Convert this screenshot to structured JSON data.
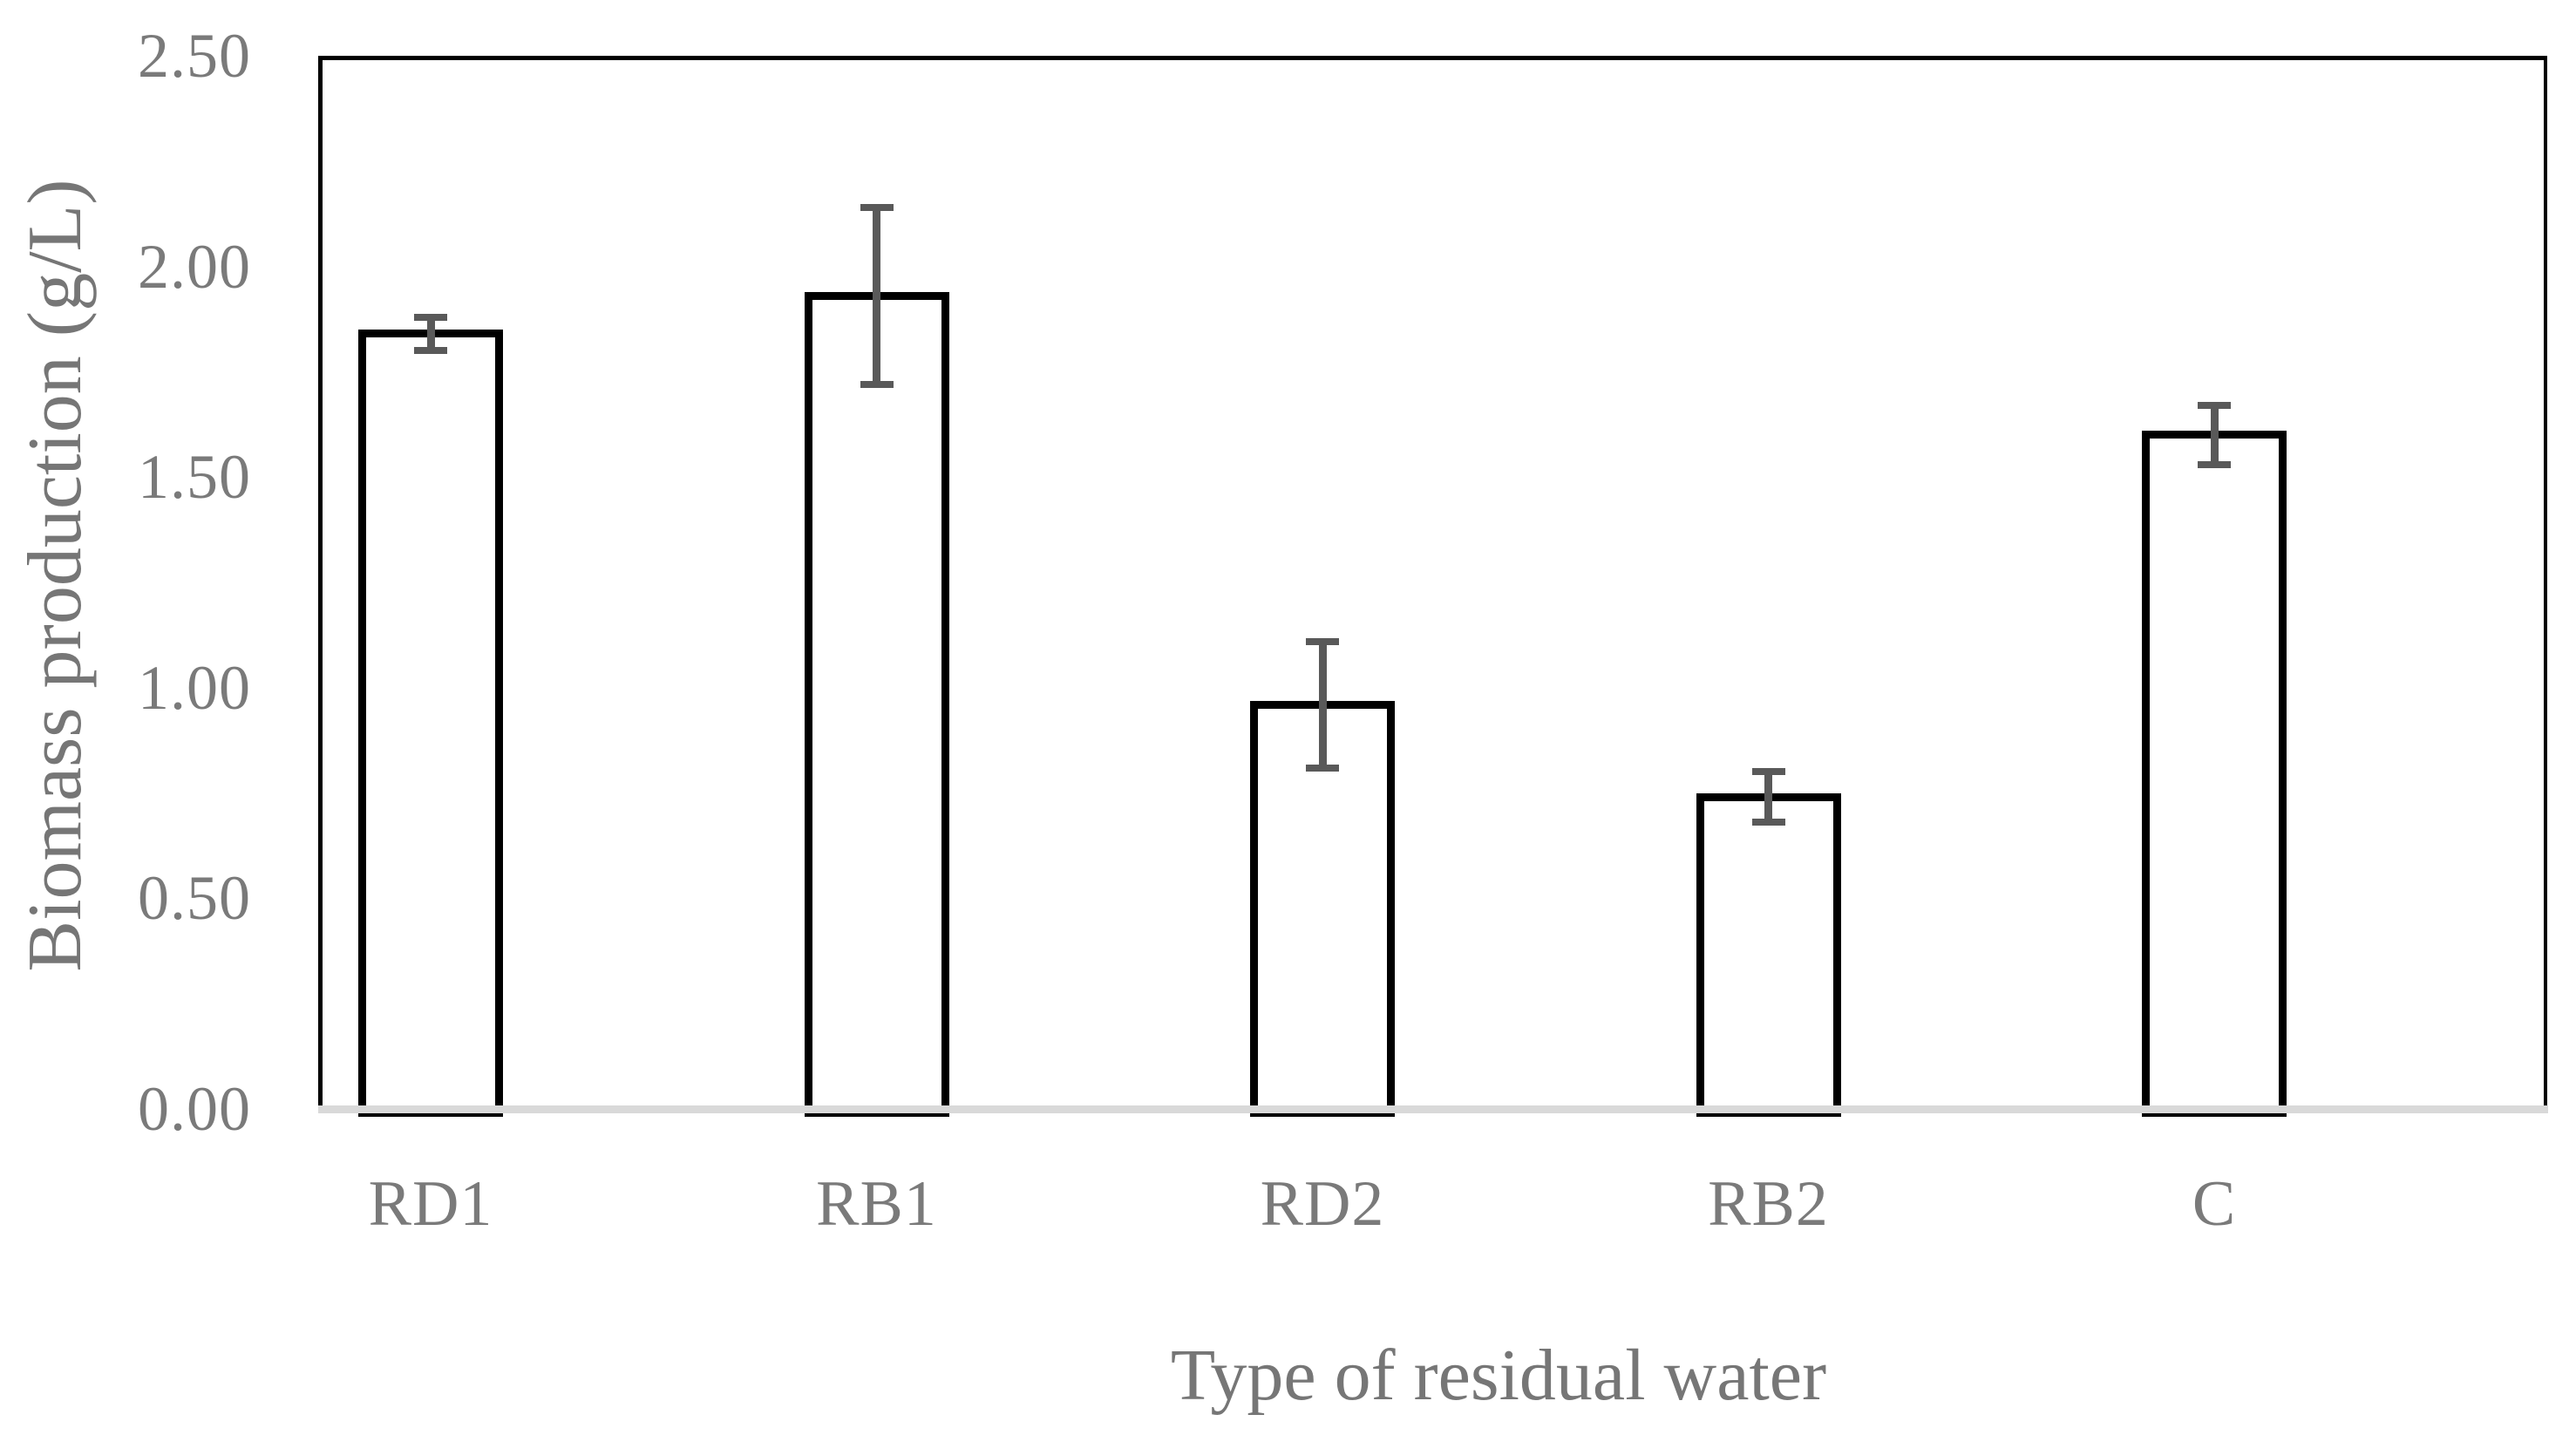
{
  "chart_data": {
    "type": "bar",
    "categories": [
      "RD1",
      "RB1",
      "RD2",
      "RB2",
      "C"
    ],
    "values": [
      1.84,
      1.93,
      0.96,
      0.74,
      1.6
    ],
    "errors": [
      0.04,
      0.21,
      0.15,
      0.06,
      0.07
    ],
    "title": "",
    "xlabel": "Type of residual water",
    "ylabel": "Biomass production (g/L)",
    "ylim": [
      0,
      2.5
    ],
    "ytick_step": 0.5,
    "ytick_labels": [
      "0.00",
      "0.50",
      "1.00",
      "1.50",
      "2.00",
      "2.50"
    ],
    "grid": false,
    "legend_position": "none",
    "error_bar_style": "plus-minus-caps",
    "colors": {
      "bar_fill": "#ffffff",
      "bar_border": "#000000",
      "error_bar": "#595959",
      "axis_text": "#7a7a7a",
      "axis_title_text": "#767676",
      "x_axis_line": "#d9d9d9",
      "plot_border": "#000000",
      "background": "#ffffff"
    }
  }
}
